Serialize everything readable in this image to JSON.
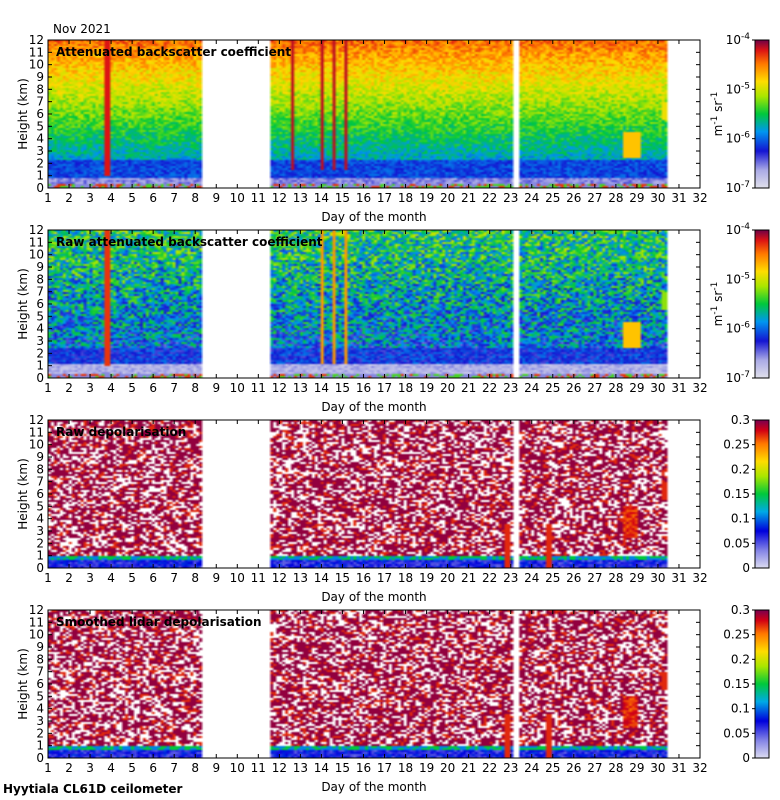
{
  "figure": {
    "date_label": "Nov 2021",
    "site_label": "Hyytiala CL61D ceilometer"
  },
  "chart_data": [
    {
      "type": "heatmap",
      "title": "Attenuated backscatter coefficient",
      "xlabel": "Day of the month",
      "ylabel": "Height (km)",
      "xlim": [
        1,
        32
      ],
      "ylim": [
        0,
        12
      ],
      "x_ticks": [
        1,
        2,
        3,
        4,
        5,
        6,
        7,
        8,
        9,
        10,
        11,
        12,
        13,
        14,
        15,
        16,
        17,
        18,
        19,
        20,
        21,
        22,
        23,
        24,
        25,
        26,
        27,
        28,
        29,
        30,
        31,
        32
      ],
      "y_ticks": [
        0,
        1,
        2,
        3,
        4,
        5,
        6,
        7,
        8,
        9,
        10,
        11,
        12
      ],
      "data_gaps": [
        [
          8.3,
          11.5
        ],
        [
          23.15,
          23.35
        ],
        [
          30.45,
          32
        ]
      ],
      "colorbar": {
        "scale": "log",
        "range": [
          1e-07,
          0.0001
        ],
        "ticks": [
          {
            "value": 0.0001,
            "label": "10",
            "exp": "-4"
          },
          {
            "value": 1e-05,
            "label": "10",
            "exp": "-5"
          },
          {
            "value": 1e-06,
            "label": "10",
            "exp": "-6"
          },
          {
            "value": 1e-07,
            "label": "10",
            "exp": "-7"
          }
        ],
        "unit": "m",
        "unit_exp1": "-1",
        "unit_mid": " sr",
        "unit_exp2": "-1"
      },
      "render": "backscatter"
    },
    {
      "type": "heatmap",
      "title": "Raw attenuated backscatter coefficient",
      "xlabel": "Day of the month",
      "ylabel": "Height (km)",
      "xlim": [
        1,
        32
      ],
      "ylim": [
        0,
        12
      ],
      "x_ticks": [
        1,
        2,
        3,
        4,
        5,
        6,
        7,
        8,
        9,
        10,
        11,
        12,
        13,
        14,
        15,
        16,
        17,
        18,
        19,
        20,
        21,
        22,
        23,
        24,
        25,
        26,
        27,
        28,
        29,
        30,
        31,
        32
      ],
      "y_ticks": [
        0,
        1,
        2,
        3,
        4,
        5,
        6,
        7,
        8,
        9,
        10,
        11,
        12
      ],
      "data_gaps": [
        [
          8.3,
          11.5
        ],
        [
          23.15,
          23.35
        ],
        [
          30.45,
          32
        ]
      ],
      "colorbar": {
        "scale": "log",
        "range": [
          1e-07,
          0.0001
        ],
        "ticks": [
          {
            "value": 0.0001,
            "label": "10",
            "exp": "-4"
          },
          {
            "value": 1e-05,
            "label": "10",
            "exp": "-5"
          },
          {
            "value": 1e-06,
            "label": "10",
            "exp": "-6"
          },
          {
            "value": 1e-07,
            "label": "10",
            "exp": "-7"
          }
        ],
        "unit": "m",
        "unit_exp1": "-1",
        "unit_mid": " sr",
        "unit_exp2": "-1"
      },
      "render": "raw_backscatter"
    },
    {
      "type": "heatmap",
      "title": "Raw depolarisation",
      "xlabel": "Day of the month",
      "ylabel": "Height (km)",
      "xlim": [
        1,
        32
      ],
      "ylim": [
        0,
        12
      ],
      "x_ticks": [
        1,
        2,
        3,
        4,
        5,
        6,
        7,
        8,
        9,
        10,
        11,
        12,
        13,
        14,
        15,
        16,
        17,
        18,
        19,
        20,
        21,
        22,
        23,
        24,
        25,
        26,
        27,
        28,
        29,
        30,
        31,
        32
      ],
      "y_ticks": [
        0,
        1,
        2,
        3,
        4,
        5,
        6,
        7,
        8,
        9,
        10,
        11,
        12
      ],
      "data_gaps": [
        [
          8.3,
          11.5
        ],
        [
          23.15,
          23.35
        ],
        [
          30.45,
          32
        ]
      ],
      "colorbar": {
        "scale": "linear",
        "range": [
          0,
          0.3
        ],
        "ticks": [
          {
            "value": 0.3,
            "label": "0.3"
          },
          {
            "value": 0.25,
            "label": "0.25"
          },
          {
            "value": 0.2,
            "label": "0.2"
          },
          {
            "value": 0.15,
            "label": "0.15"
          },
          {
            "value": 0.1,
            "label": "0.1"
          },
          {
            "value": 0.05,
            "label": "0.05"
          },
          {
            "value": 0,
            "label": "0"
          }
        ]
      },
      "render": "depol"
    },
    {
      "type": "heatmap",
      "title": "Smoothed lidar depolarisation",
      "xlabel": "Day of the month",
      "ylabel": "Height (km)",
      "xlim": [
        1,
        32
      ],
      "ylim": [
        0,
        12
      ],
      "x_ticks": [
        1,
        2,
        3,
        4,
        5,
        6,
        7,
        8,
        9,
        10,
        11,
        12,
        13,
        14,
        15,
        16,
        17,
        18,
        19,
        20,
        21,
        22,
        23,
        24,
        25,
        26,
        27,
        28,
        29,
        30,
        31,
        32
      ],
      "y_ticks": [
        0,
        1,
        2,
        3,
        4,
        5,
        6,
        7,
        8,
        9,
        10,
        11,
        12
      ],
      "data_gaps": [
        [
          8.3,
          11.5
        ],
        [
          23.15,
          23.35
        ],
        [
          30.45,
          32
        ]
      ],
      "colorbar": {
        "scale": "linear",
        "range": [
          0,
          0.3
        ],
        "ticks": [
          {
            "value": 0.3,
            "label": "0.3"
          },
          {
            "value": 0.25,
            "label": "0.25"
          },
          {
            "value": 0.2,
            "label": "0.2"
          },
          {
            "value": 0.15,
            "label": "0.15"
          },
          {
            "value": 0.1,
            "label": "0.1"
          },
          {
            "value": 0.05,
            "label": "0.05"
          },
          {
            "value": 0,
            "label": "0"
          }
        ]
      },
      "render": "depol_smooth"
    }
  ]
}
